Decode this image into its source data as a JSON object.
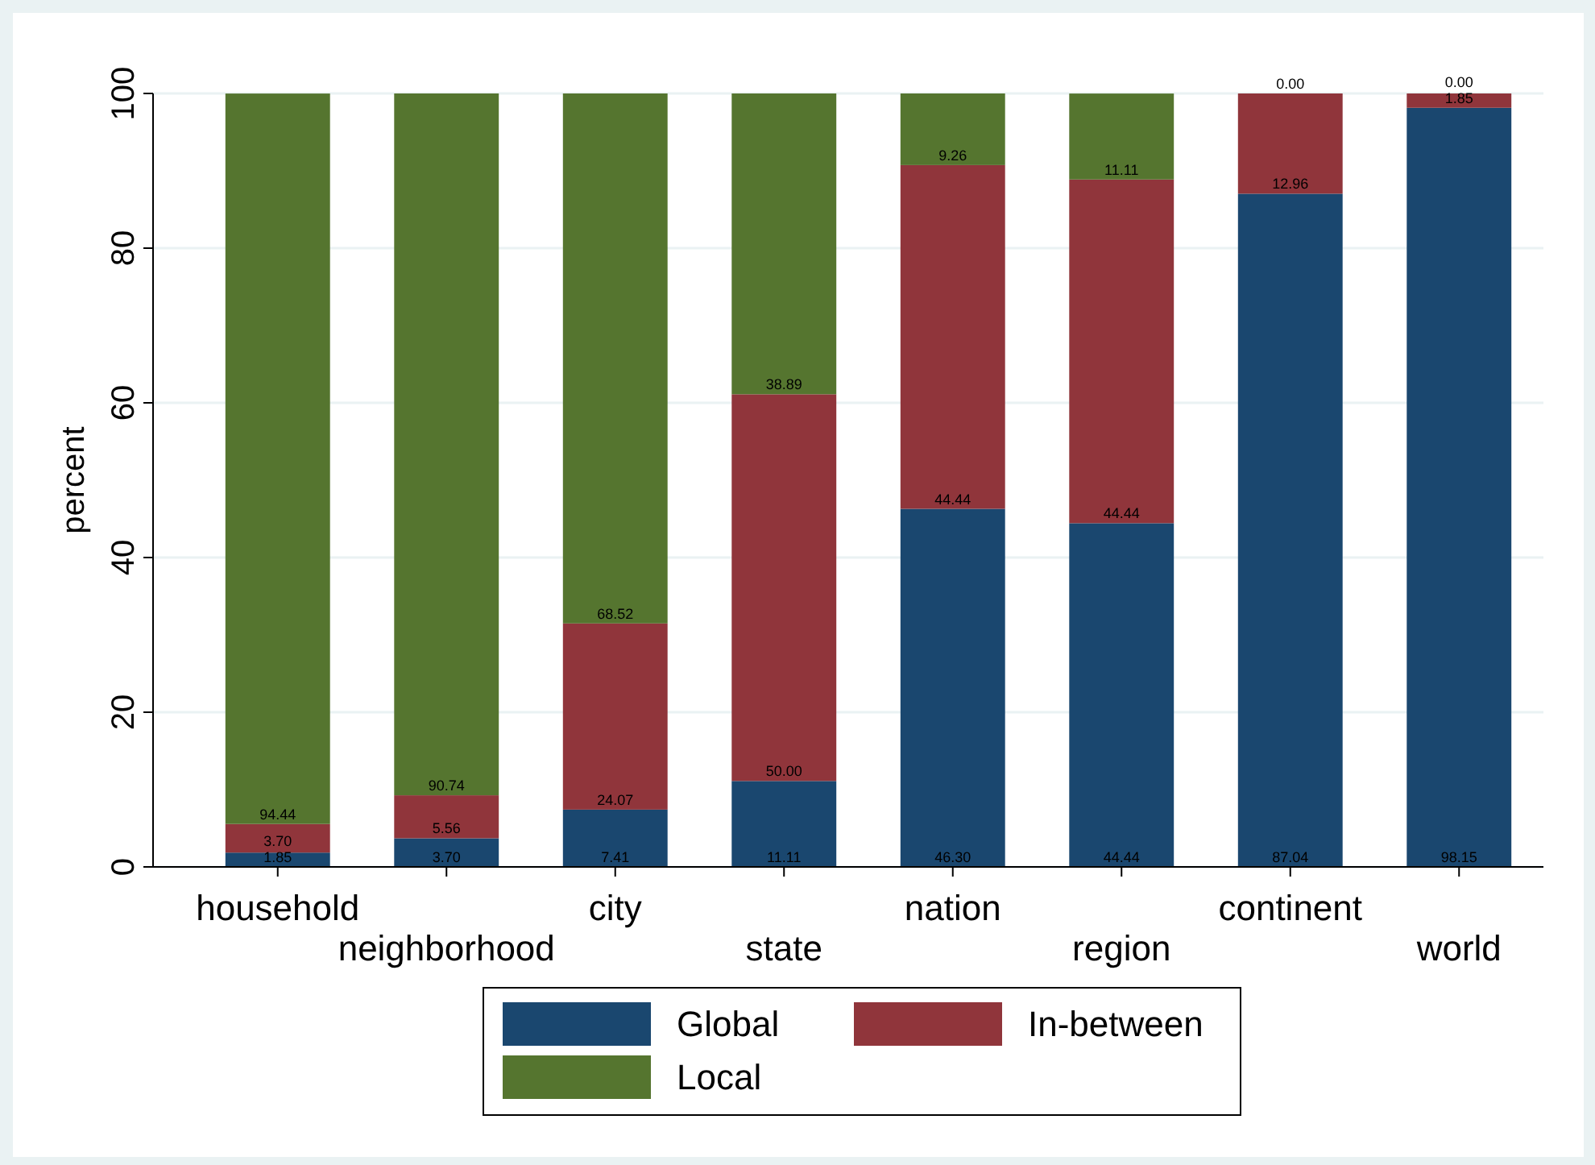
{
  "chart_data": {
    "type": "bar",
    "stacked": true,
    "ylabel": "percent",
    "categories": [
      "household",
      "neighborhood",
      "city",
      "state",
      "nation",
      "region",
      "continent",
      "world"
    ],
    "series": [
      {
        "name": "Global",
        "color": "#1a476f",
        "values": [
          1.85,
          3.7,
          7.41,
          11.11,
          46.3,
          44.44,
          87.04,
          98.15
        ],
        "value_labels": [
          "1.85",
          "3.70",
          "7.41",
          "11.11",
          "46.30",
          "44.44",
          "87.04",
          "98.15"
        ]
      },
      {
        "name": "In-between",
        "color": "#90353b",
        "values": [
          3.7,
          5.56,
          24.07,
          50.0,
          44.44,
          44.44,
          12.96,
          1.85
        ],
        "value_labels": [
          "3.70",
          "5.56",
          "24.07",
          "50.00",
          "44.44",
          "44.44",
          "12.96",
          "1.85"
        ]
      },
      {
        "name": "Local",
        "color": "#55752f",
        "values": [
          94.44,
          90.74,
          68.52,
          38.89,
          9.26,
          11.11,
          0.0,
          0.0
        ],
        "value_labels": [
          "94.44",
          "90.74",
          "68.52",
          "38.89",
          "9.26",
          "11.11",
          "0.00",
          "0.00"
        ]
      }
    ],
    "ylim": [
      0,
      100
    ],
    "yticks": [
      0,
      20,
      40,
      60,
      80,
      100
    ],
    "grid": "y",
    "legend": "bottom"
  }
}
